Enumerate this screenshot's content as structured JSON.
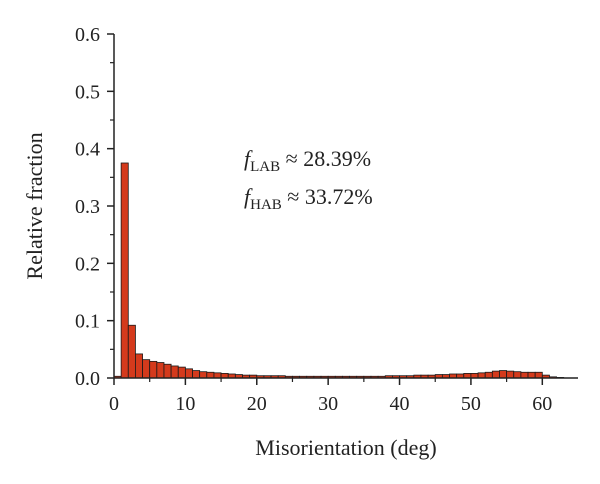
{
  "chart_data": {
    "type": "bar",
    "title": "",
    "xlabel": "Misorientation (deg)",
    "ylabel": "Relative fraction",
    "xlim": [
      0,
      65
    ],
    "ylim": [
      0.0,
      0.6
    ],
    "xticks": [
      0,
      10,
      20,
      30,
      40,
      50,
      60
    ],
    "xtick_labels": [
      "0",
      "10",
      "20",
      "30",
      "40",
      "50",
      "60"
    ],
    "yticks": [
      0.0,
      0.1,
      0.2,
      0.3,
      0.4,
      0.5,
      0.6
    ],
    "ytick_labels": [
      "0.0",
      "0.1",
      "0.2",
      "0.3",
      "0.4",
      "0.5",
      "0.6"
    ],
    "bin_width": 1,
    "bin_starts": [
      0,
      1,
      2,
      3,
      4,
      5,
      6,
      7,
      8,
      9,
      10,
      11,
      12,
      13,
      14,
      15,
      16,
      17,
      18,
      19,
      20,
      21,
      22,
      23,
      24,
      25,
      26,
      27,
      28,
      29,
      30,
      31,
      32,
      33,
      34,
      35,
      36,
      37,
      38,
      39,
      40,
      41,
      42,
      43,
      44,
      45,
      46,
      47,
      48,
      49,
      50,
      51,
      52,
      53,
      54,
      55,
      56,
      57,
      58,
      59,
      60,
      61,
      62
    ],
    "values": [
      0.003,
      0.375,
      0.092,
      0.042,
      0.032,
      0.029,
      0.027,
      0.024,
      0.021,
      0.019,
      0.016,
      0.013,
      0.011,
      0.01,
      0.009,
      0.008,
      0.007,
      0.006,
      0.005,
      0.005,
      0.004,
      0.004,
      0.004,
      0.004,
      0.003,
      0.003,
      0.003,
      0.003,
      0.003,
      0.003,
      0.003,
      0.003,
      0.003,
      0.003,
      0.003,
      0.003,
      0.003,
      0.003,
      0.004,
      0.004,
      0.004,
      0.004,
      0.005,
      0.005,
      0.005,
      0.006,
      0.006,
      0.007,
      0.007,
      0.008,
      0.008,
      0.009,
      0.01,
      0.012,
      0.013,
      0.012,
      0.011,
      0.01,
      0.01,
      0.01,
      0.005,
      0.002,
      0.001
    ],
    "bar_color": "#d43a1c",
    "bar_edge_color": "#1a1a1a",
    "annotations": [
      {
        "symbol": "f",
        "subscript": "LAB",
        "text": " ≈ 28.39%"
      },
      {
        "symbol": "f",
        "subscript": "HAB",
        "text": " ≈ 33.72%"
      }
    ]
  }
}
